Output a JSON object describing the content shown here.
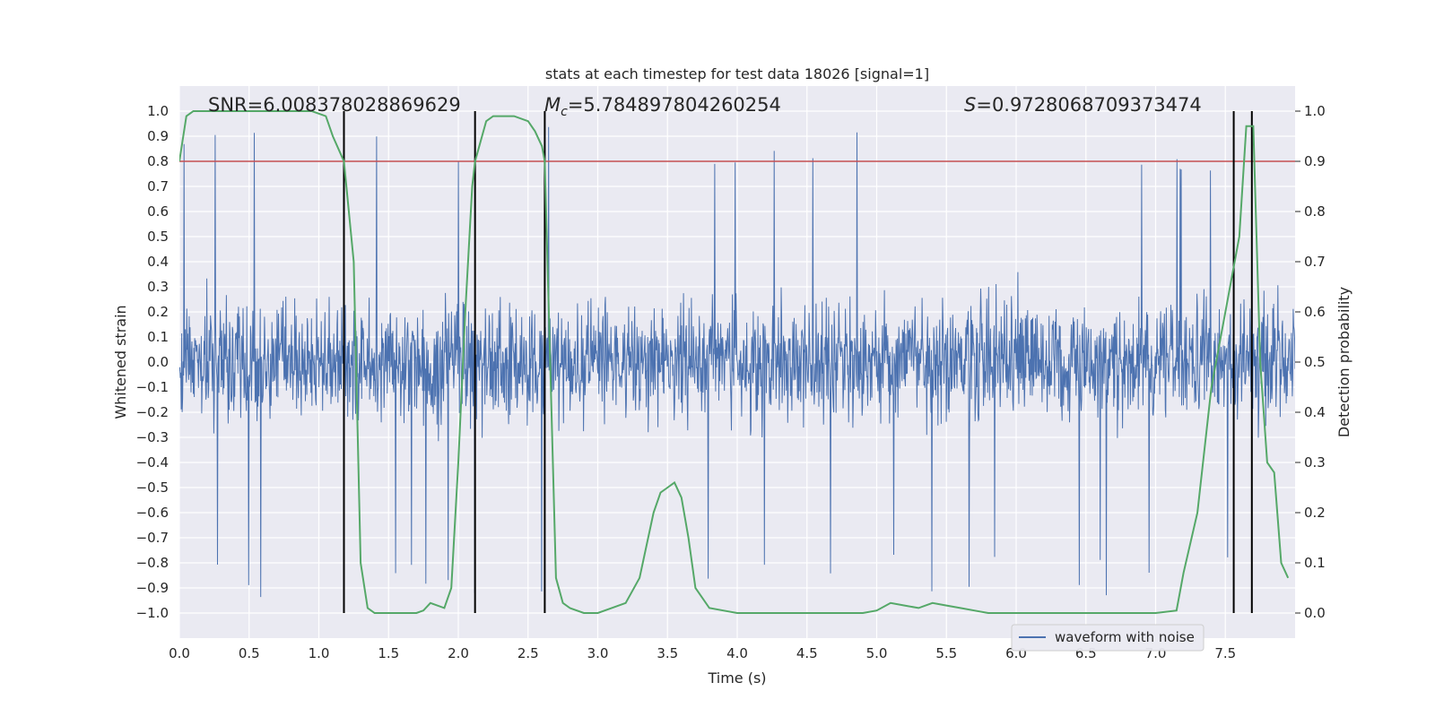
{
  "chart_data": {
    "type": "line",
    "title": "stats at each timestep for test data 18026 [signal=1]",
    "xlabel": "Time (s)",
    "ylabel_left": "Whitened strain",
    "ylabel_right": "Detection probability",
    "xlim": [
      0.0,
      8.0
    ],
    "ylim_left": [
      -1.1,
      1.1
    ],
    "ylim_right": [
      -0.05,
      1.05
    ],
    "x_ticks": [
      "0.0",
      "0.5",
      "1.0",
      "1.5",
      "2.0",
      "2.5",
      "3.0",
      "3.5",
      "4.0",
      "4.5",
      "5.0",
      "5.5",
      "6.0",
      "6.5",
      "7.0",
      "7.5"
    ],
    "y_ticks_left": [
      "1.0",
      "0.9",
      "0.8",
      "0.7",
      "0.6",
      "0.5",
      "0.4",
      "0.3",
      "0.2",
      "0.1",
      "0.0",
      "-0.1",
      "-0.2",
      "-0.3",
      "-0.4",
      "-0.5",
      "-0.6",
      "-0.7",
      "-0.8",
      "-0.9",
      "-1.0"
    ],
    "y_ticks_right": [
      "1.0",
      "0.9",
      "0.8",
      "0.7",
      "0.6",
      "0.5",
      "0.4",
      "0.3",
      "0.2",
      "0.1",
      "0.0"
    ],
    "annotations": {
      "snr": "SNR=6.008378028869629",
      "mc_symbol": "M",
      "mc_sub": "c",
      "mc_value": "=5.784897804260254",
      "s_symbol": "S",
      "s_value": "=0.9728068709373474"
    },
    "legend": {
      "label": "waveform with noise",
      "position": "lower-right"
    },
    "threshold": 0.9,
    "vertical_lines_x": [
      1.18,
      2.12,
      2.62,
      7.56,
      7.69
    ],
    "series": [
      {
        "name": "waveform with noise",
        "axis": "left",
        "color": "#4c72b0",
        "style": "noise",
        "envelope_range": [
          -1.0,
          1.0
        ]
      },
      {
        "name": "detection probability",
        "axis": "right",
        "color": "#55a868",
        "x": [
          0.0,
          0.05,
          0.1,
          0.2,
          0.4,
          0.6,
          0.8,
          0.95,
          1.05,
          1.1,
          1.18,
          1.25,
          1.3,
          1.35,
          1.4,
          1.5,
          1.6,
          1.7,
          1.75,
          1.8,
          1.9,
          1.95,
          2.0,
          2.05,
          2.1,
          2.12,
          2.2,
          2.25,
          2.3,
          2.4,
          2.5,
          2.55,
          2.6,
          2.62,
          2.7,
          2.75,
          2.8,
          2.9,
          3.0,
          3.1,
          3.2,
          3.3,
          3.4,
          3.45,
          3.5,
          3.55,
          3.6,
          3.65,
          3.7,
          3.8,
          3.9,
          4.0,
          4.5,
          4.8,
          4.9,
          5.0,
          5.1,
          5.2,
          5.3,
          5.4,
          5.5,
          5.6,
          5.7,
          5.8,
          6.0,
          6.5,
          6.7,
          7.0,
          7.15,
          7.2,
          7.3,
          7.4,
          7.5,
          7.6,
          7.65,
          7.7,
          7.75,
          7.8,
          7.85,
          7.9,
          7.95
        ],
        "values": [
          0.9,
          0.99,
          1.0,
          1.0,
          1.0,
          1.0,
          1.0,
          1.0,
          0.99,
          0.95,
          0.9,
          0.7,
          0.1,
          0.01,
          0.0,
          0.0,
          0.0,
          0.0,
          0.005,
          0.02,
          0.01,
          0.05,
          0.3,
          0.6,
          0.85,
          0.9,
          0.98,
          0.99,
          0.99,
          0.99,
          0.98,
          0.96,
          0.93,
          0.9,
          0.07,
          0.02,
          0.01,
          0.0,
          0.0,
          0.01,
          0.02,
          0.07,
          0.2,
          0.24,
          0.25,
          0.26,
          0.23,
          0.15,
          0.05,
          0.01,
          0.005,
          0.0,
          0.0,
          0.0,
          0.0,
          0.005,
          0.02,
          0.015,
          0.01,
          0.02,
          0.015,
          0.01,
          0.005,
          0.0,
          0.0,
          0.0,
          0.0,
          0.0,
          0.005,
          0.08,
          0.2,
          0.45,
          0.6,
          0.75,
          0.97,
          0.97,
          0.5,
          0.3,
          0.28,
          0.1,
          0.07
        ]
      }
    ]
  }
}
